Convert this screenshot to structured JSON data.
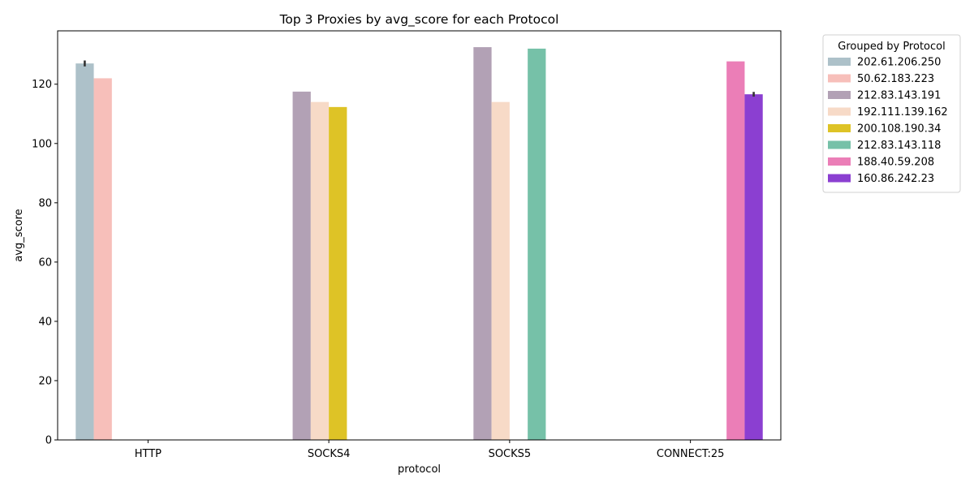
{
  "chart_data": {
    "type": "bar",
    "title": "Top 3 Proxies by avg_score for each Protocol",
    "xlabel": "protocol",
    "ylabel": "avg_score",
    "ylim": [
      0,
      138
    ],
    "yticks": [
      0,
      20,
      40,
      60,
      80,
      100,
      120
    ],
    "categories": [
      "HTTP",
      "SOCKS4",
      "SOCKS5",
      "CONNECT:25"
    ],
    "legend": {
      "title": "Grouped by Protocol",
      "placement": "outside-top-right"
    },
    "series": [
      {
        "name": "202.61.206.250",
        "color": "#adc1c9",
        "values": [
          127,
          null,
          null,
          null
        ],
        "error": [
          1,
          null,
          null,
          null
        ]
      },
      {
        "name": "50.62.183.223",
        "color": "#f7bfba",
        "values": [
          122,
          null,
          null,
          null
        ],
        "error": [
          null,
          null,
          null,
          null
        ]
      },
      {
        "name": "212.83.143.191",
        "color": "#b2a1b5",
        "values": [
          null,
          117.5,
          132.5,
          null
        ],
        "error": [
          null,
          null,
          null,
          null
        ]
      },
      {
        "name": "192.111.139.162",
        "color": "#f7dac7",
        "values": [
          null,
          114,
          114,
          null
        ],
        "error": [
          null,
          null,
          null,
          null
        ]
      },
      {
        "name": "200.108.190.34",
        "color": "#dec326",
        "values": [
          null,
          112.3,
          null,
          null
        ],
        "error": [
          null,
          null,
          null,
          null
        ]
      },
      {
        "name": "212.83.143.118",
        "color": "#76c1a8",
        "values": [
          null,
          null,
          132,
          null
        ],
        "error": [
          null,
          null,
          null,
          null
        ]
      },
      {
        "name": "188.40.59.208",
        "color": "#eb7eb7",
        "values": [
          null,
          null,
          null,
          127.7
        ],
        "error": [
          null,
          null,
          null,
          null
        ]
      },
      {
        "name": "160.86.242.23",
        "color": "#8b3fd1",
        "values": [
          null,
          null,
          null,
          116.6
        ],
        "error": [
          null,
          null,
          null,
          0.8
        ]
      }
    ]
  }
}
